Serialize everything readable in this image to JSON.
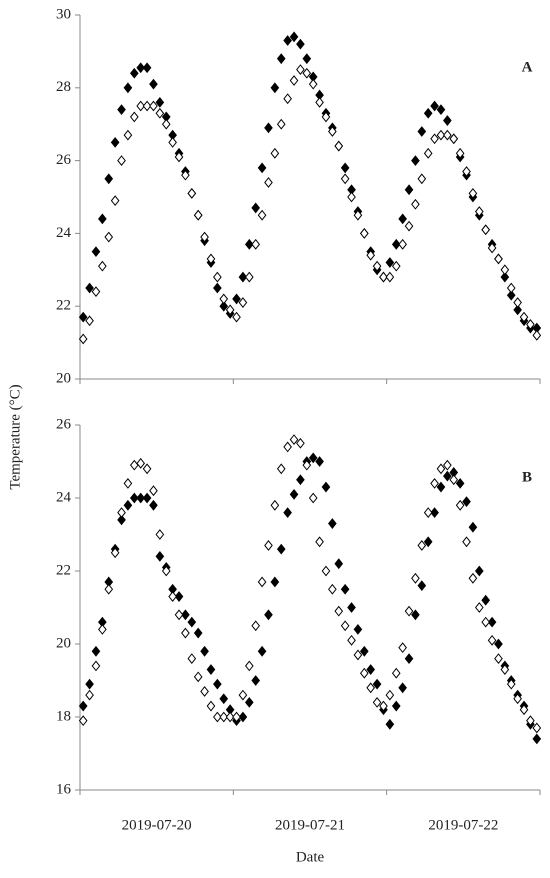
{
  "chart_data": [
    {
      "type": "scatter",
      "title": "A",
      "ylabel": "Temperature (°C)",
      "xlim": [
        0,
        72
      ],
      "xtick_marks": [
        0,
        24,
        48,
        72
      ],
      "ylim": [
        20,
        30
      ],
      "yticks": [
        20,
        22,
        24,
        26,
        28,
        30
      ],
      "x": [
        0.5,
        1.5,
        2.5,
        3.5,
        4.5,
        5.5,
        6.5,
        7.5,
        8.5,
        9.5,
        10.5,
        11.5,
        12.5,
        13.5,
        14.5,
        15.5,
        16.5,
        17.5,
        18.5,
        19.5,
        20.5,
        21.5,
        22.5,
        23.5,
        24.5,
        25.5,
        26.5,
        27.5,
        28.5,
        29.5,
        30.5,
        31.5,
        32.5,
        33.5,
        34.5,
        35.5,
        36.5,
        37.5,
        38.5,
        39.5,
        40.5,
        41.5,
        42.5,
        43.5,
        44.5,
        45.5,
        46.5,
        47.5,
        48.5,
        49.5,
        50.5,
        51.5,
        52.5,
        53.5,
        54.5,
        55.5,
        56.5,
        57.5,
        58.5,
        59.5,
        60.5,
        61.5,
        62.5,
        63.5,
        64.5,
        65.5,
        66.5,
        67.5,
        68.5,
        69.5,
        70.5,
        71.5
      ],
      "series": [
        {
          "color": "#000000",
          "marker_fill": "#000000",
          "values": [
            21.7,
            22.5,
            23.5,
            24.4,
            25.5,
            26.5,
            27.4,
            28.0,
            28.4,
            28.55,
            28.55,
            28.1,
            27.6,
            27.2,
            26.7,
            26.2,
            25.7,
            25.1,
            24.5,
            23.8,
            23.2,
            22.5,
            22.0,
            21.8,
            22.2,
            22.8,
            23.7,
            24.7,
            25.8,
            26.9,
            28.0,
            28.8,
            29.3,
            29.4,
            29.2,
            28.8,
            28.3,
            27.8,
            27.3,
            26.9,
            26.4,
            25.8,
            25.2,
            24.6,
            24.0,
            23.5,
            23.0,
            22.8,
            23.2,
            23.7,
            24.4,
            25.2,
            26.0,
            26.8,
            27.3,
            27.5,
            27.4,
            27.1,
            26.6,
            26.1,
            25.6,
            25.0,
            24.5,
            24.1,
            23.7,
            23.3,
            22.8,
            22.3,
            21.9,
            21.6,
            21.4,
            21.4
          ]
        },
        {
          "color": "#000000",
          "marker_fill": "#ffffff",
          "values": [
            21.1,
            21.6,
            22.4,
            23.1,
            23.9,
            24.9,
            26.0,
            26.7,
            27.2,
            27.5,
            27.5,
            27.5,
            27.3,
            27.0,
            26.5,
            26.1,
            25.6,
            25.1,
            24.5,
            23.9,
            23.3,
            22.8,
            22.2,
            21.9,
            21.7,
            22.1,
            22.8,
            23.7,
            24.5,
            25.4,
            26.2,
            27.0,
            27.7,
            28.2,
            28.5,
            28.4,
            28.1,
            27.6,
            27.2,
            26.8,
            26.4,
            25.5,
            25.0,
            24.5,
            24.0,
            23.4,
            23.1,
            22.8,
            22.8,
            23.1,
            23.7,
            24.2,
            24.8,
            25.5,
            26.2,
            26.6,
            26.7,
            26.7,
            26.6,
            26.2,
            25.7,
            25.1,
            24.6,
            24.1,
            23.6,
            23.3,
            23.0,
            22.5,
            22.1,
            21.7,
            21.5,
            21.2
          ]
        }
      ]
    },
    {
      "type": "scatter",
      "title": "B",
      "xlabel": "Date",
      "xlim": [
        0,
        72
      ],
      "xtick_marks": [
        0,
        24,
        48,
        72
      ],
      "xticks": [
        {
          "value": 12,
          "label": "2019-07-20"
        },
        {
          "value": 36,
          "label": "2019-07-21"
        },
        {
          "value": 60,
          "label": "2019-07-22"
        }
      ],
      "ylim": [
        16,
        26
      ],
      "yticks": [
        16,
        18,
        20,
        22,
        24,
        26
      ],
      "x": [
        0.5,
        1.5,
        2.5,
        3.5,
        4.5,
        5.5,
        6.5,
        7.5,
        8.5,
        9.5,
        10.5,
        11.5,
        12.5,
        13.5,
        14.5,
        15.5,
        16.5,
        17.5,
        18.5,
        19.5,
        20.5,
        21.5,
        22.5,
        23.5,
        24.5,
        25.5,
        26.5,
        27.5,
        28.5,
        29.5,
        30.5,
        31.5,
        32.5,
        33.5,
        34.5,
        35.5,
        36.5,
        37.5,
        38.5,
        39.5,
        40.5,
        41.5,
        42.5,
        43.5,
        44.5,
        45.5,
        46.5,
        47.5,
        48.5,
        49.5,
        50.5,
        51.5,
        52.5,
        53.5,
        54.5,
        55.5,
        56.5,
        57.5,
        58.5,
        59.5,
        60.5,
        61.5,
        62.5,
        63.5,
        64.5,
        65.5,
        66.5,
        67.5,
        68.5,
        69.5,
        70.5,
        71.5
      ],
      "series": [
        {
          "color": "#000000",
          "marker_fill": "#000000",
          "values": [
            18.3,
            18.9,
            19.8,
            20.6,
            21.7,
            22.6,
            23.4,
            23.8,
            24.0,
            24.0,
            24.0,
            23.8,
            22.4,
            22.1,
            21.5,
            21.3,
            20.8,
            20.6,
            20.3,
            19.8,
            19.3,
            18.9,
            18.5,
            18.2,
            17.9,
            18.0,
            18.4,
            19.0,
            19.8,
            20.8,
            21.7,
            22.6,
            23.6,
            24.1,
            24.5,
            25.0,
            25.1,
            25.0,
            24.3,
            23.3,
            22.2,
            21.5,
            21.0,
            20.4,
            19.8,
            19.3,
            18.9,
            18.2,
            17.8,
            18.3,
            18.8,
            19.6,
            20.8,
            21.6,
            22.8,
            23.6,
            24.3,
            24.6,
            24.7,
            24.4,
            23.9,
            23.2,
            22.0,
            21.2,
            20.6,
            20.0,
            19.4,
            19.0,
            18.6,
            18.3,
            17.8,
            17.4
          ]
        },
        {
          "color": "#000000",
          "marker_fill": "#ffffff",
          "values": [
            17.9,
            18.6,
            19.4,
            20.4,
            21.5,
            22.5,
            23.6,
            24.4,
            24.9,
            24.95,
            24.8,
            24.2,
            23.0,
            22.0,
            21.3,
            20.8,
            20.3,
            19.6,
            19.1,
            18.7,
            18.3,
            18.0,
            18.0,
            18.0,
            18.0,
            18.6,
            19.4,
            20.5,
            21.7,
            22.7,
            23.8,
            24.8,
            25.4,
            25.6,
            25.5,
            24.9,
            24.0,
            22.8,
            22.0,
            21.5,
            20.9,
            20.5,
            20.1,
            19.7,
            19.2,
            18.8,
            18.4,
            18.3,
            18.6,
            19.2,
            19.9,
            20.9,
            21.8,
            22.7,
            23.6,
            24.4,
            24.8,
            24.9,
            24.5,
            23.8,
            22.8,
            21.8,
            21.0,
            20.6,
            20.1,
            19.6,
            19.3,
            18.9,
            18.5,
            18.2,
            17.9,
            17.7
          ]
        }
      ]
    }
  ]
}
